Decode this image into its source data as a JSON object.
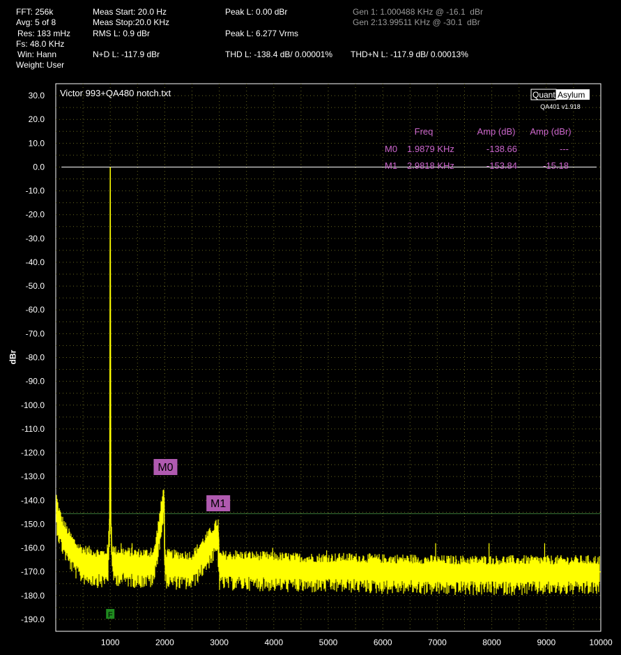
{
  "header": {
    "fft": "FFT: 256k",
    "avg": "Avg: 5 of 8",
    "res": "Res: 183 mHz",
    "fs": "Fs: 48.0 KHz",
    "win": "Win: Hann",
    "weight": "Weight: User",
    "meas_start": "Meas Start: 20.0 Hz",
    "meas_stop": "Meas Stop:20.0 KHz",
    "rms": "RMS L: 0.9 dBr",
    "nd": "N+D L: -117.9 dBr",
    "peak_dbr": "Peak L: 0.00 dBr",
    "peak_vrms": "Peak L: 6.277 Vrms",
    "thd": "THD L: -138.4 dB/ 0.00001%",
    "thdn": "THD+N L: -117.9 dB/ 0.00013%",
    "gen1": "Gen 1: 1.000488 KHz @ -16.1  dBr",
    "gen2": "Gen 2:13.99511 KHz @ -30.1  dBr"
  },
  "chart_data": {
    "type": "line",
    "title": "Victor 993+QA480 notch.txt",
    "ylabel": "dBr",
    "xlabel": "",
    "xlim": [
      0,
      10000
    ],
    "ylim": [
      -195,
      35
    ],
    "x_ticks": [
      1000,
      2000,
      3000,
      4000,
      5000,
      6000,
      7000,
      8000,
      9000,
      10000
    ],
    "y_ticks": [
      30.0,
      20.0,
      10.0,
      0.0,
      -10.0,
      -20.0,
      -30.0,
      -40.0,
      -50.0,
      -60.0,
      -70.0,
      -80.0,
      -90.0,
      -100.0,
      -110.0,
      -120.0,
      -130.0,
      -140.0,
      -150.0,
      -160.0,
      -170.0,
      -180.0,
      -190.0
    ],
    "grid": true,
    "series": [
      {
        "color": "#ffff00",
        "x": [
          10,
          50,
          100,
          200,
          300,
          400,
          500,
          600,
          700,
          800,
          900,
          960,
          990,
          1000,
          1010,
          1040,
          1100,
          1300,
          1500,
          1800,
          1988,
          2000,
          2100,
          2500,
          2982,
          3000,
          3100,
          3500,
          4000,
          4500,
          5000,
          5500,
          6000,
          6500,
          7000,
          7500,
          8000,
          8500,
          9000,
          9500,
          10000
        ],
        "y": [
          -143,
          -148,
          -152,
          -157,
          -161,
          -164,
          -165.5,
          -166,
          -166.5,
          -167,
          -167,
          -165,
          -150,
          0,
          -150,
          -165,
          -166,
          -166.5,
          -167,
          -167,
          -138.7,
          -167,
          -167.5,
          -168,
          -153.8,
          -168,
          -168,
          -168,
          -168.5,
          -169,
          -169,
          -169,
          -169.5,
          -169.5,
          -170,
          -170,
          -170,
          -170,
          -170,
          -170,
          -170
        ]
      }
    ],
    "reference_line": {
      "y": 0.0,
      "color": "#ffffff"
    },
    "m1_line": {
      "y": -145.6,
      "color": "#3a7a3a"
    },
    "markers": [
      {
        "label": "M0",
        "x": 1987.9,
        "y": -138.66
      },
      {
        "label": "M1",
        "x": 2981.8,
        "y": -153.84
      }
    ],
    "fundamental_marker": {
      "label": "F",
      "x": 1000
    },
    "marker_table": {
      "headers": [
        "Freq",
        "Amp (dB)",
        "Amp (dBr)"
      ],
      "rows": [
        {
          "name": "M0",
          "freq": "1.9879 KHz",
          "amp_db": "-138.66",
          "amp_dbr": "---"
        },
        {
          "name": "M1",
          "freq": "2.9818 KHz",
          "amp_db": "-153.84",
          "amp_dbr": "-15.18"
        }
      ]
    },
    "logo": {
      "left": "Quant",
      "right": "Asylum",
      "version": "QA401 v1.918"
    }
  },
  "colors": {
    "trace": "#ffff00",
    "marker_text": "#cc66cc",
    "marker_label_bg": "#b05ab0",
    "grid": "#6a6a20",
    "reference": "#ffffff"
  }
}
